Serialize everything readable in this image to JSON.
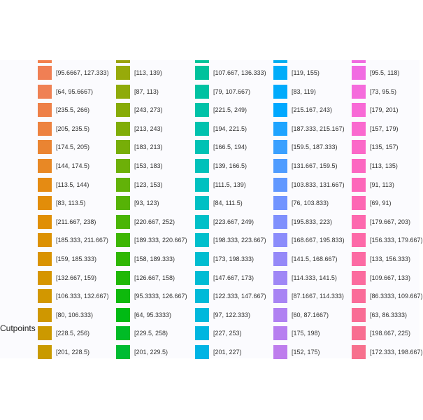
{
  "legend": {
    "title": "Cutpoints",
    "columns": [
      {
        "peek_color": "#f27f4d",
        "items": [
          {
            "label": "[95.6667, 127.333)",
            "color": "#f07f54"
          },
          {
            "label": "[64, 95.6667)",
            "color": "#ef8154"
          },
          {
            "label": "[235.5, 266)",
            "color": "#ee8048"
          },
          {
            "label": "[205, 235.5)",
            "color": "#ed8240"
          },
          {
            "label": "[174.5, 205)",
            "color": "#ea8432"
          },
          {
            "label": "[144, 174.5)",
            "color": "#e88825"
          },
          {
            "label": "[113.5, 144)",
            "color": "#e58b13"
          },
          {
            "label": "[83, 113.5)",
            "color": "#e28d09"
          },
          {
            "label": "[211.667, 238)",
            "color": "#e08f05"
          },
          {
            "label": "[185.333, 211.667)",
            "color": "#dc9103"
          },
          {
            "label": "[159, 185.333)",
            "color": "#d99302"
          },
          {
            "label": "[132.667, 159)",
            "color": "#d69500"
          },
          {
            "label": "[106.333, 132.667)",
            "color": "#d29700"
          },
          {
            "label": "[80, 106.333)",
            "color": "#cf9700"
          },
          {
            "label": "[228.5, 256)",
            "color": "#cc9900"
          },
          {
            "label": "[201, 228.5)",
            "color": "#c99a00"
          }
        ]
      },
      {
        "peek_color": "#9aa20c",
        "items": [
          {
            "label": "[113, 139)",
            "color": "#97aa0a"
          },
          {
            "label": "[87, 113)",
            "color": "#8fab0a"
          },
          {
            "label": "[243, 273)",
            "color": "#87ab08"
          },
          {
            "label": "[213, 243)",
            "color": "#80ad08"
          },
          {
            "label": "[183, 213)",
            "color": "#77ae08"
          },
          {
            "label": "[153, 183)",
            "color": "#6db008"
          },
          {
            "label": "[123, 153)",
            "color": "#62b208"
          },
          {
            "label": "[93, 123)",
            "color": "#56b306"
          },
          {
            "label": "[220.667, 252)",
            "color": "#4ab505"
          },
          {
            "label": "[189.333, 220.667)",
            "color": "#3eb604"
          },
          {
            "label": "[158, 189.333)",
            "color": "#30b704"
          },
          {
            "label": "[126.667, 158)",
            "color": "#20b806"
          },
          {
            "label": "[95.3333, 126.667)",
            "color": "#0eb90c"
          },
          {
            "label": "[64, 95.3333)",
            "color": "#00ba14"
          },
          {
            "label": "[229.5, 258)",
            "color": "#00bb26"
          },
          {
            "label": "[201, 229.5)",
            "color": "#00bc32"
          }
        ]
      },
      {
        "peek_color": "#00c49a",
        "items": [
          {
            "label": "[107.667, 136.333)",
            "color": "#00c29c"
          },
          {
            "label": "[79, 107.667)",
            "color": "#00c2a2"
          },
          {
            "label": "[221.5, 249)",
            "color": "#00c2a8"
          },
          {
            "label": "[194, 221.5)",
            "color": "#00c2ae"
          },
          {
            "label": "[166.5, 194)",
            "color": "#00c2b4"
          },
          {
            "label": "[139, 166.5)",
            "color": "#00c1ba"
          },
          {
            "label": "[111.5, 139)",
            "color": "#00c1c0"
          },
          {
            "label": "[84, 111.5)",
            "color": "#00c0c4"
          },
          {
            "label": "[223.667, 249)",
            "color": "#00c0c8"
          },
          {
            "label": "[198.333, 223.667)",
            "color": "#00bfcc"
          },
          {
            "label": "[173, 198.333)",
            "color": "#00bdd0"
          },
          {
            "label": "[147.667, 173)",
            "color": "#00bcd4"
          },
          {
            "label": "[122.333, 147.667)",
            "color": "#00bad8"
          },
          {
            "label": "[97, 122.333)",
            "color": "#00b8dc"
          },
          {
            "label": "[227, 253)",
            "color": "#00b6e0"
          },
          {
            "label": "[201, 227)",
            "color": "#00b4e4"
          }
        ]
      },
      {
        "peek_color": "#00aef0",
        "items": [
          {
            "label": "[119, 155)",
            "color": "#00adfa"
          },
          {
            "label": "[83, 119)",
            "color": "#00abfc"
          },
          {
            "label": "[215.167, 243)",
            "color": "#00a8ff"
          },
          {
            "label": "[187.333, 215.167)",
            "color": "#1ea4ff"
          },
          {
            "label": "[159.5, 187.333)",
            "color": "#3aa0ff"
          },
          {
            "label": "[131.667, 159.5)",
            "color": "#4f9cff"
          },
          {
            "label": "[103.833, 131.667)",
            "color": "#6198ff"
          },
          {
            "label": "[76, 103.833)",
            "color": "#7194ff"
          },
          {
            "label": "[195.833, 223)",
            "color": "#7f90fd"
          },
          {
            "label": "[168.667, 195.833)",
            "color": "#8b8cfb"
          },
          {
            "label": "[141.5, 168.667)",
            "color": "#9589f8"
          },
          {
            "label": "[114.333, 141.5)",
            "color": "#9f87f6"
          },
          {
            "label": "[87.1667, 114.333)",
            "color": "#a884f4"
          },
          {
            "label": "[60, 87.1667)",
            "color": "#b081f2"
          },
          {
            "label": "[175, 198)",
            "color": "#b77ff0"
          },
          {
            "label": "[152, 175)",
            "color": "#be7ded"
          }
        ]
      },
      {
        "peek_color": "#f06be0",
        "items": [
          {
            "label": "[95.5, 118)",
            "color": "#f16be2"
          },
          {
            "label": "[73, 95.5)",
            "color": "#f56bdc"
          },
          {
            "label": "[179, 201)",
            "color": "#f86ad6"
          },
          {
            "label": "[157, 179)",
            "color": "#fa69cf"
          },
          {
            "label": "[135, 157)",
            "color": "#fb68c8"
          },
          {
            "label": "[113, 135)",
            "color": "#fc67c1"
          },
          {
            "label": "[91, 113)",
            "color": "#fd67ba"
          },
          {
            "label": "[69, 91)",
            "color": "#fd67b4"
          },
          {
            "label": "[179.667, 203)",
            "color": "#fd68ae"
          },
          {
            "label": "[156.333, 179.667)",
            "color": "#fd69a8"
          },
          {
            "label": "[133, 156.333)",
            "color": "#fc6aa3"
          },
          {
            "label": "[109.667, 133)",
            "color": "#fb6b9e"
          },
          {
            "label": "[86.3333, 109.667)",
            "color": "#fa6c99"
          },
          {
            "label": "[63, 86.3333)",
            "color": "#f96d95"
          },
          {
            "label": "[198.667, 225)",
            "color": "#f86e91"
          },
          {
            "label": "[172.333, 198.667)",
            "color": "#f7708d"
          }
        ]
      }
    ]
  },
  "chart_data": {
    "type": "legend",
    "title": "Cutpoints",
    "series": [
      {
        "values": [
          "[95.6667, 127.333)",
          "[64, 95.6667)",
          "[235.5, 266)",
          "[205, 235.5)",
          "[174.5, 205)",
          "[144, 174.5)",
          "[113.5, 144)",
          "[83, 113.5)",
          "[211.667, 238)",
          "[185.333, 211.667)",
          "[159, 185.333)",
          "[132.667, 159)",
          "[106.333, 132.667)",
          "[80, 106.333)",
          "[228.5, 256)",
          "[201, 228.5)"
        ]
      },
      {
        "values": [
          "[113, 139)",
          "[87, 113)",
          "[243, 273)",
          "[213, 243)",
          "[183, 213)",
          "[153, 183)",
          "[123, 153)",
          "[93, 123)",
          "[220.667, 252)",
          "[189.333, 220.667)",
          "[158, 189.333)",
          "[126.667, 158)",
          "[95.3333, 126.667)",
          "[64, 95.3333)",
          "[229.5, 258)",
          "[201, 229.5)"
        ]
      },
      {
        "values": [
          "[107.667, 136.333)",
          "[79, 107.667)",
          "[221.5, 249)",
          "[194, 221.5)",
          "[166.5, 194)",
          "[139, 166.5)",
          "[111.5, 139)",
          "[84, 111.5)",
          "[223.667, 249)",
          "[198.333, 223.667)",
          "[173, 198.333)",
          "[147.667, 173)",
          "[122.333, 147.667)",
          "[97, 122.333)",
          "[227, 253)",
          "[201, 227)"
        ]
      },
      {
        "values": [
          "[119, 155)",
          "[83, 119)",
          "[215.167, 243)",
          "[187.333, 215.167)",
          "[159.5, 187.333)",
          "[131.667, 159.5)",
          "[103.833, 131.667)",
          "[76, 103.833)",
          "[195.833, 223)",
          "[168.667, 195.833)",
          "[141.5, 168.667)",
          "[114.333, 141.5)",
          "[87.1667, 114.333)",
          "[60, 87.1667)",
          "[175, 198)",
          "[152, 175)"
        ]
      },
      {
        "values": [
          "[95.5, 118)",
          "[73, 95.5)",
          "[179, 201)",
          "[157, 179)",
          "[135, 157)",
          "[113, 135)",
          "[91, 113)",
          "[69, 91)",
          "[179.667, 203)",
          "[156.333, 179.667)",
          "[133, 156.333)",
          "[109.667, 133)",
          "[86.3333, 109.667)",
          "[63, 86.3333)",
          "[198.667, 225)",
          "[172.333, 198.667)"
        ]
      }
    ]
  }
}
